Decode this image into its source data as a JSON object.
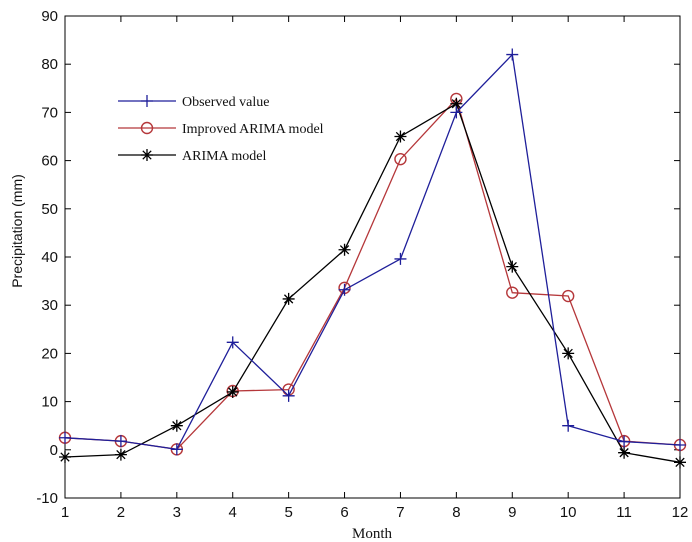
{
  "chart_data": {
    "type": "line",
    "title": "",
    "xlabel": "Month",
    "ylabel": "Precipitation (mm)",
    "x": [
      1,
      2,
      3,
      4,
      5,
      6,
      7,
      8,
      9,
      10,
      11,
      12
    ],
    "xlim": [
      1,
      12
    ],
    "ylim": [
      -10,
      90
    ],
    "xticks": [
      1,
      2,
      3,
      4,
      5,
      6,
      7,
      8,
      9,
      10,
      11,
      12
    ],
    "yticks": [
      -10,
      0,
      10,
      20,
      30,
      40,
      50,
      60,
      70,
      80,
      90
    ],
    "grid": false,
    "legend_position": "upper-left",
    "series": [
      {
        "name": "Observed value",
        "color": "#1f1f9a",
        "marker": "plus",
        "values": [
          2.5,
          1.8,
          0.1,
          22.3,
          11.2,
          33.2,
          39.6,
          70.0,
          82.0,
          5.0,
          1.7,
          1.0
        ]
      },
      {
        "name": "Improved ARIMA model",
        "color": "#b5373a",
        "marker": "circle",
        "values": [
          2.5,
          1.8,
          0.1,
          12.2,
          12.5,
          33.6,
          60.3,
          72.8,
          32.6,
          31.9,
          1.8,
          1.0
        ]
      },
      {
        "name": "ARIMA model",
        "color": "#000000",
        "marker": "asterisk",
        "values": [
          -1.5,
          -1.0,
          5.0,
          12.0,
          31.3,
          41.5,
          65.0,
          71.8,
          38.0,
          20.0,
          -0.6,
          -2.6
        ]
      }
    ]
  }
}
